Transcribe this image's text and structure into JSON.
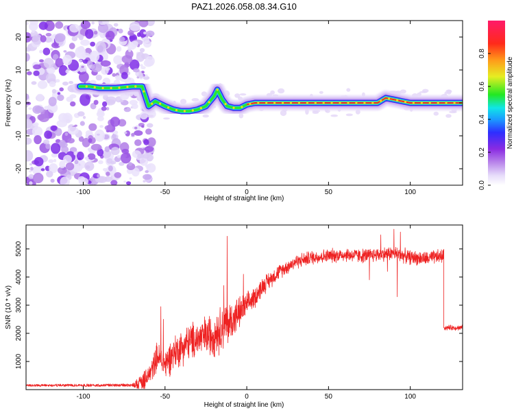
{
  "figure_title": "PAZ1.2026.058.08.34.G10",
  "colors": {
    "frame": "#000000",
    "snr_line": "#ee2222",
    "spectrum_line": "#e8242c",
    "colormap": [
      "#ffffff",
      "#dcd0f5",
      "#b07ce6",
      "#7f2ee8",
      "#3c2cff",
      "#1aa7ff",
      "#13e0e0",
      "#2ee62e",
      "#e8e82a",
      "#ff9a1a",
      "#ff2a1a",
      "#ff1a66"
    ]
  },
  "chart_data": [
    {
      "type": "heatmap",
      "name": "spectrogram",
      "xlabel": "Height of straight line (km)",
      "ylabel": "Frequency (Hz)",
      "xlim": [
        -135,
        132
      ],
      "ylim": [
        -25,
        25
      ],
      "xticks": [
        -100,
        -50,
        0,
        50,
        100
      ],
      "xtick_labels": [
        "-100",
        "-50",
        "0",
        "50",
        "100"
      ],
      "yticks": [
        -20,
        -10,
        0,
        10,
        20
      ],
      "ytick_labels": [
        "-20",
        "-10",
        "0",
        "10",
        "20"
      ],
      "noise_region_end_km": -62,
      "ridge": {
        "x": [
          -102,
          -96,
          -90,
          -80,
          -70,
          -64,
          -60,
          -56,
          -50,
          -45,
          -40,
          -35,
          -30,
          -25,
          -20,
          -18,
          -15,
          -12,
          -8,
          -4,
          0,
          5,
          20,
          40,
          60,
          80,
          85,
          90,
          95,
          100,
          120,
          132
        ],
        "y": [
          5,
          5,
          4.5,
          4.5,
          5,
          5,
          -1,
          0.5,
          -1,
          -2,
          -2.5,
          -2.5,
          -2,
          -1,
          2,
          4,
          1,
          -1,
          -1.5,
          -1.5,
          -0.5,
          0,
          0,
          0,
          0,
          0,
          1.5,
          1,
          0.5,
          0,
          0,
          0
        ]
      },
      "colorbar": {
        "label": "Normalized spectral amplitude",
        "range": [
          0,
          1
        ],
        "ticks": [
          0.0,
          0.2,
          0.4,
          0.6,
          0.8
        ],
        "tick_labels": [
          "0.0",
          "0.2",
          "0.4",
          "0.6",
          "0.8"
        ]
      }
    },
    {
      "type": "line",
      "name": "snr",
      "xlabel": "Height of straight line (km)",
      "ylabel": "SNR (10 * v/v)",
      "xlim": [
        -135,
        132
      ],
      "ylim": [
        0,
        5850
      ],
      "xticks": [
        -100,
        -50,
        0,
        50,
        100
      ],
      "xtick_labels": [
        "-100",
        "-50",
        "0",
        "50",
        "100"
      ],
      "yticks": [
        1000,
        2000,
        3000,
        4000,
        5000
      ],
      "ytick_labels": [
        "1000",
        "2000",
        "3000",
        "4000",
        "5000"
      ],
      "envelope": {
        "x": [
          -135,
          -70,
          -62,
          -58,
          -55,
          -50,
          -45,
          -40,
          -35,
          -30,
          -25,
          -20,
          -15,
          -10,
          -5,
          0,
          5,
          10,
          20,
          30,
          40,
          50,
          60,
          70,
          80,
          90,
          100,
          110,
          120
        ],
        "y": [
          150,
          160,
          300,
          700,
          1200,
          900,
          1300,
          1500,
          1700,
          1800,
          1900,
          2000,
          2200,
          2400,
          2700,
          3000,
          3300,
          3700,
          4200,
          4550,
          4700,
          4750,
          4800,
          4750,
          4800,
          4850,
          4700,
          4650,
          4750
        ]
      },
      "noise_amplitude": {
        "x": [
          -135,
          -70,
          -62,
          -50,
          -30,
          -15,
          -10,
          0,
          20,
          80,
          120
        ],
        "y": [
          40,
          50,
          400,
          700,
          800,
          1000,
          900,
          500,
          300,
          300,
          300
        ]
      },
      "spikes": [
        {
          "x": -52.5,
          "y": 2950
        },
        {
          "x": -51,
          "y": 2500
        },
        {
          "x": -12,
          "y": 5450
        },
        {
          "x": -14,
          "y": 3700
        },
        {
          "x": -2,
          "y": 4100
        },
        {
          "x": 82,
          "y": 5500
        },
        {
          "x": 86,
          "y": 4200
        },
        {
          "x": 90,
          "y": 5700
        },
        {
          "x": 92,
          "y": 3300
        },
        {
          "x": 94,
          "y": 5600
        },
        {
          "x": 75,
          "y": 3900
        }
      ],
      "drop_at_km": 120.5,
      "tail_level": 2200
    }
  ]
}
